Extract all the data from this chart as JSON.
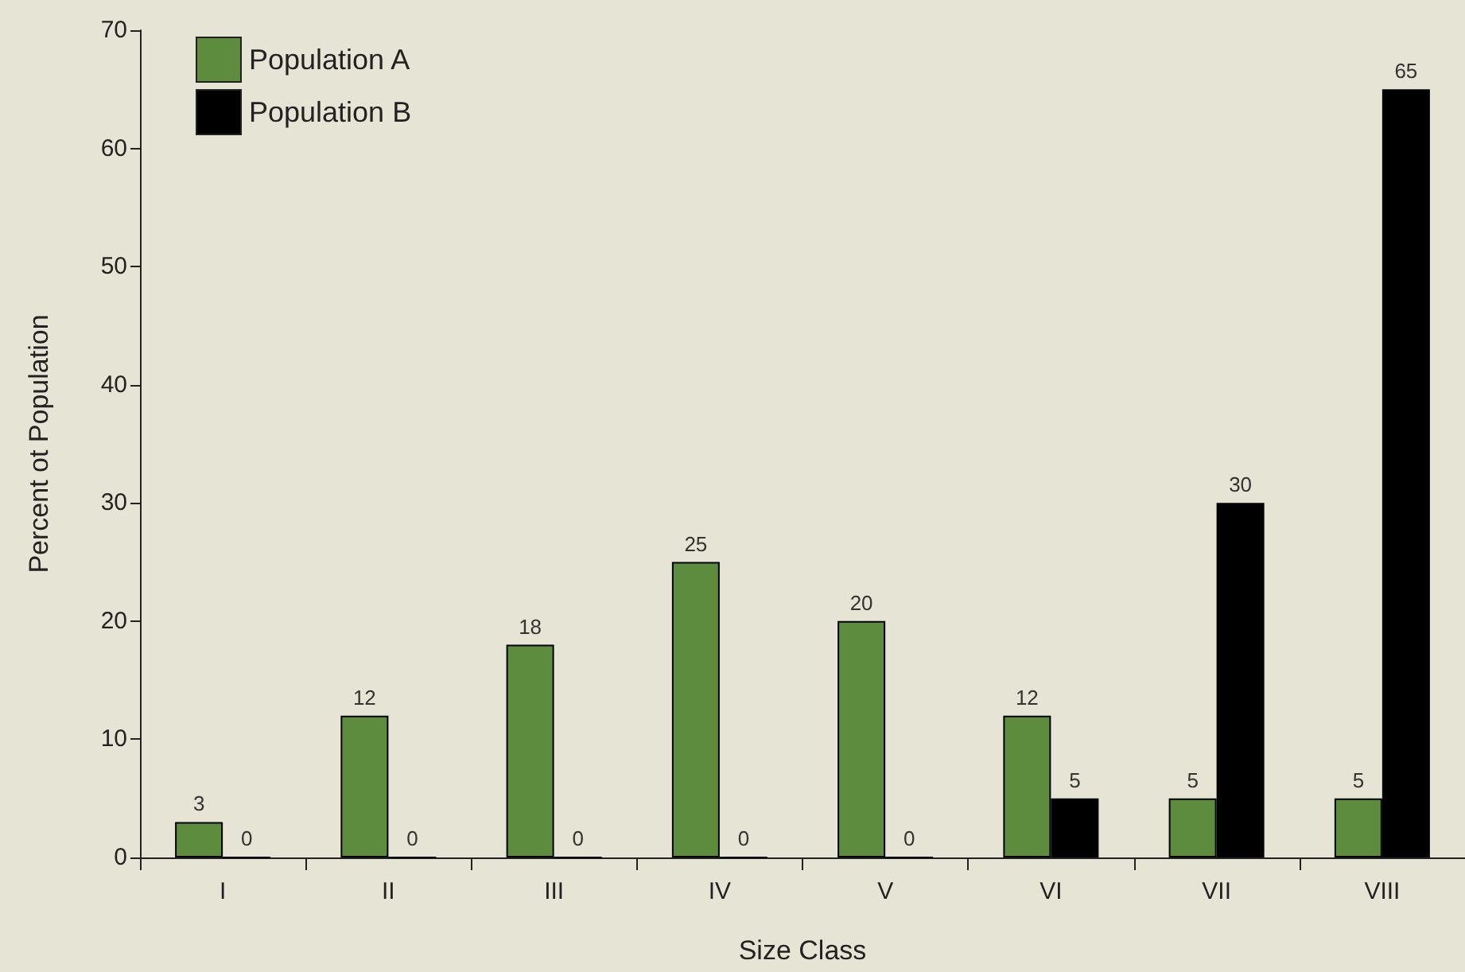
{
  "chart_data": {
    "type": "bar",
    "xlabel": "Size Class",
    "ylabel": "Percent ot Population",
    "categories": [
      "I",
      "II",
      "III",
      "IV",
      "V",
      "VI",
      "VII",
      "VIII"
    ],
    "series": [
      {
        "name": "Population A",
        "color": "#5e8c3e",
        "values": [
          3,
          12,
          18,
          25,
          20,
          12,
          5,
          5
        ]
      },
      {
        "name": "Population B",
        "color": "#000000",
        "values": [
          0,
          0,
          0,
          0,
          0,
          5,
          30,
          65
        ]
      }
    ],
    "ylim": [
      0,
      70
    ],
    "yticks": [
      0,
      10,
      20,
      30,
      40,
      50,
      60,
      70
    ],
    "grid": false,
    "legend": "top left",
    "data_labels": true
  }
}
